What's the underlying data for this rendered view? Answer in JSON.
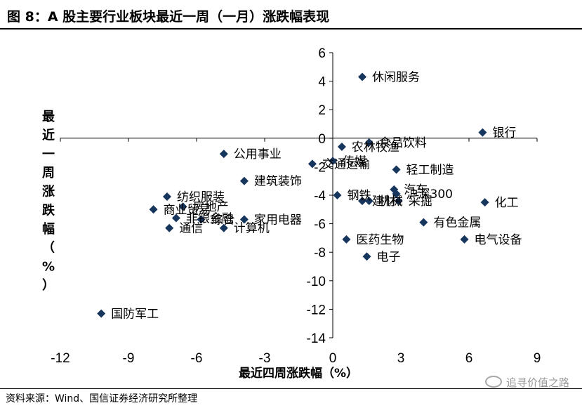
{
  "figure": {
    "title": "图 8：A 股主要行业板块最近一周（一月）涨跌幅表现",
    "source": "资料来源：Wind、国信证券经济研究所整理",
    "watermark": "追寻价值之路"
  },
  "colors": {
    "marker": "#17365D",
    "axis": "#000000"
  },
  "chart_data": {
    "type": "scatter",
    "title": "",
    "xlabel": "最近四周涨跌幅（%）",
    "ylabel": "最近一周涨跌幅（%）",
    "xlim": [
      -12,
      9
    ],
    "ylim": [
      -14,
      6
    ],
    "xticks": [
      -12,
      -9,
      -6,
      -3,
      0,
      3,
      6,
      9
    ],
    "yticks": [
      6,
      4,
      2,
      0,
      -2,
      -4,
      -6,
      -8,
      -10,
      -12,
      -14
    ],
    "grid": false,
    "marker": "diamond",
    "points": [
      {
        "label": "休闲服务",
        "x": 1.3,
        "y": 4.3
      },
      {
        "label": "银行",
        "x": 6.6,
        "y": 0.4
      },
      {
        "label": "食品饮料",
        "x": 1.6,
        "y": -0.3
      },
      {
        "label": "农林牧渔",
        "x": 0.4,
        "y": -0.6
      },
      {
        "label": "公用事业",
        "x": -4.8,
        "y": -1.1
      },
      {
        "label": "交通运输",
        "x": -0.9,
        "y": -1.8
      },
      {
        "label": "传媒",
        "x": 0.0,
        "y": -1.6
      },
      {
        "label": "轻工制造",
        "x": 2.8,
        "y": -2.2
      },
      {
        "label": "建筑装饰",
        "x": -3.9,
        "y": -3.0
      },
      {
        "label": "纺织服装",
        "x": -7.3,
        "y": -4.1
      },
      {
        "label": "钢铁",
        "x": 0.2,
        "y": -4.0
      },
      {
        "label": "汽车",
        "x": 2.7,
        "y": -3.6
      },
      {
        "label": "沪深300",
        "x": 2.8,
        "y": -3.9
      },
      {
        "label": "化工",
        "x": 6.7,
        "y": -4.5
      },
      {
        "label": "建材",
        "x": 1.3,
        "y": -4.4
      },
      {
        "label": "机械",
        "x": 1.6,
        "y": -4.4
      },
      {
        "label": "采掘",
        "x": 2.9,
        "y": -4.4
      },
      {
        "label": "商业贸易",
        "x": -7.9,
        "y": -5.0
      },
      {
        "label": "房地产",
        "x": -6.6,
        "y": -4.8
      },
      {
        "label": "非银金融",
        "x": -6.9,
        "y": -5.6
      },
      {
        "label": "综合",
        "x": -5.8,
        "y": -5.7
      },
      {
        "label": "家用电器",
        "x": -3.9,
        "y": -5.7
      },
      {
        "label": "有色金属",
        "x": 4.0,
        "y": -5.9
      },
      {
        "label": "通信",
        "x": -7.2,
        "y": -6.3
      },
      {
        "label": "计算机",
        "x": -4.8,
        "y": -6.3
      },
      {
        "label": "医药生物",
        "x": 0.6,
        "y": -7.1
      },
      {
        "label": "电气设备",
        "x": 5.8,
        "y": -7.1
      },
      {
        "label": "电子",
        "x": 1.5,
        "y": -8.3
      },
      {
        "label": "国防军工",
        "x": -10.2,
        "y": -12.3
      }
    ]
  }
}
